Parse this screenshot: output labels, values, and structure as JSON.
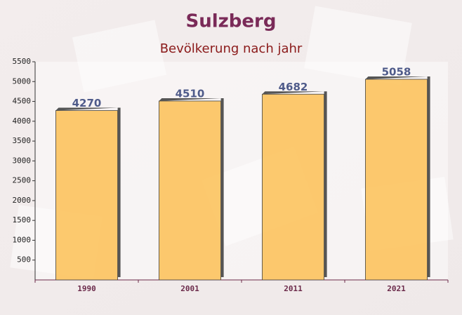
{
  "chart_data": {
    "type": "bar",
    "title": "Sulzberg",
    "subtitle": "Bevölkerung nach jahr",
    "categories": [
      "1990",
      "2001",
      "2011",
      "2021"
    ],
    "values": [
      4270,
      4510,
      4682,
      5058
    ],
    "color": "#fcc35e",
    "ylim": [
      0,
      5500
    ],
    "yticks": [
      500,
      1000,
      1500,
      2000,
      2500,
      3000,
      3500,
      4000,
      4500,
      5000,
      5500
    ],
    "grid": false
  }
}
